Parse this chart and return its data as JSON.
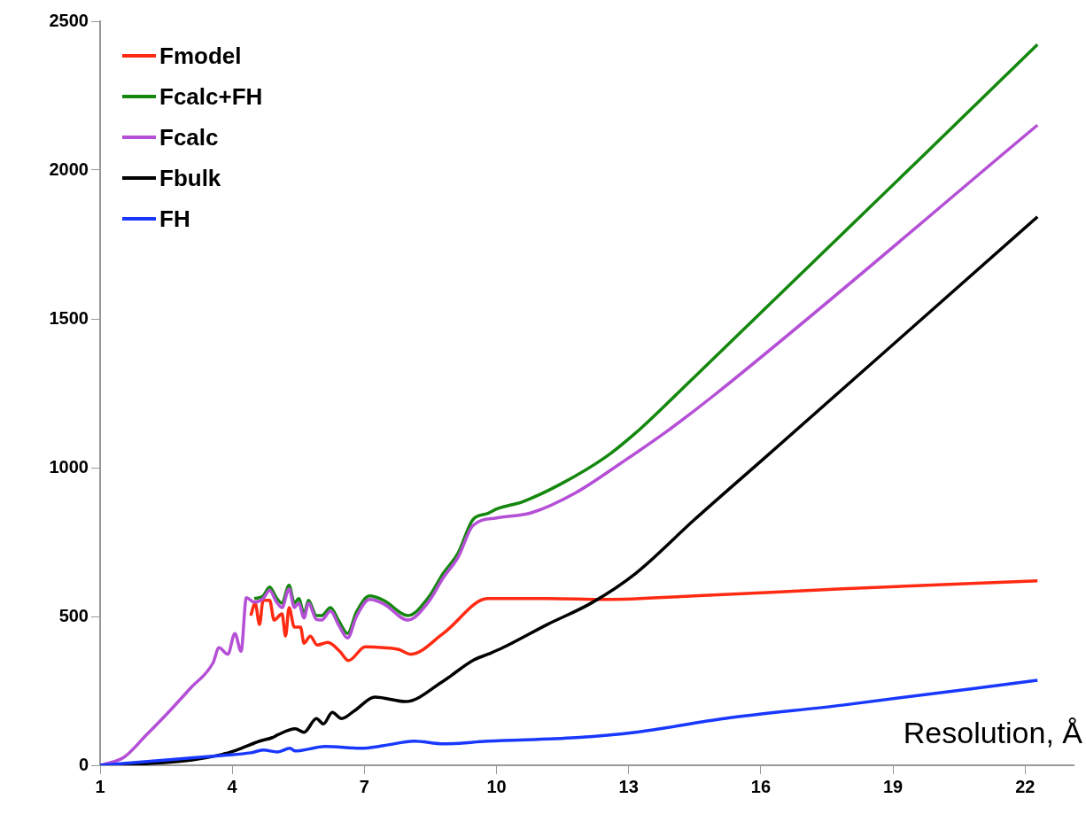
{
  "chart_data": {
    "type": "line",
    "xlabel": "Resolution, Å",
    "xlim": [
      1,
      23.1
    ],
    "xticks": [
      1,
      4,
      7,
      10,
      13,
      16,
      19,
      22
    ],
    "ylim": [
      0,
      2500
    ],
    "yticks": [
      0,
      500,
      1000,
      1500,
      2000,
      2500
    ],
    "grid": false,
    "legend": "top left",
    "marker": "none",
    "line_style": "solid",
    "series": [
      {
        "name": "Fmodel",
        "color": "#ff2a12",
        "x": [
          4.42,
          4.52,
          4.62,
          4.7,
          4.85,
          4.95,
          5.13,
          5.21,
          5.29,
          5.41,
          5.55,
          5.63,
          5.77,
          5.93,
          6.17,
          6.44,
          6.64,
          7.02,
          7.44,
          7.78,
          8.05,
          8.79,
          9.8,
          11.15,
          12.48,
          14.49,
          17.85,
          22.28
        ],
        "values": [
          503,
          545,
          473,
          554,
          554,
          488,
          509,
          434,
          530,
          464,
          464,
          410,
          434,
          404,
          413,
          383,
          352,
          398,
          395,
          389,
          373,
          443,
          560,
          560,
          557,
          569,
          593,
          620
        ]
      },
      {
        "name": "Fcalc+FH",
        "color": "#14880e",
        "x": [
          4.5,
          4.7,
          4.85,
          5.0,
          5.13,
          5.29,
          5.41,
          5.51,
          5.63,
          5.73,
          5.91,
          6.03,
          6.23,
          6.42,
          6.62,
          6.82,
          7.12,
          7.44,
          7.99,
          8.45,
          8.79,
          9.13,
          9.46,
          9.8,
          10.0,
          10.6,
          11.47,
          12.48,
          13.16,
          14.09,
          22.28
        ],
        "values": [
          560,
          569,
          599,
          563,
          545,
          605,
          545,
          560,
          509,
          554,
          503,
          503,
          530,
          485,
          443,
          515,
          569,
          554,
          503,
          563,
          645,
          714,
          825,
          846,
          861,
          886,
          946,
          1036,
          1117,
          1247,
          2422
        ]
      },
      {
        "name": "Fcalc",
        "color": "#b44fd6",
        "x": [
          1,
          1.54,
          2.05,
          2.55,
          3.05,
          3.56,
          3.7,
          3.9,
          4.06,
          4.2,
          4.32,
          4.5,
          4.7,
          4.85,
          5.0,
          5.13,
          5.29,
          5.41,
          5.51,
          5.63,
          5.73,
          5.91,
          6.03,
          6.23,
          6.42,
          6.62,
          6.82,
          7.12,
          7.44,
          7.99,
          8.45,
          8.79,
          9.13,
          9.46,
          10.0,
          10.8,
          11.8,
          12.82,
          13.82,
          14.97,
          22.28
        ],
        "values": [
          0,
          27,
          102,
          178,
          259,
          343,
          395,
          373,
          443,
          383,
          563,
          548,
          560,
          588,
          550,
          530,
          593,
          530,
          545,
          495,
          545,
          490,
          488,
          518,
          470,
          428,
          500,
          557,
          542,
          488,
          548,
          630,
          700,
          805,
          831,
          849,
          916,
          1015,
          1117,
          1247,
          2151
        ]
      },
      {
        "name": "Fbulk",
        "color": "#000000",
        "x": [
          1,
          2.09,
          3.09,
          3.76,
          4.1,
          4.62,
          4.91,
          5.03,
          5.43,
          5.63,
          5.91,
          6.07,
          6.27,
          6.48,
          6.78,
          7.24,
          7.93,
          8.79,
          9.46,
          9.8,
          10.14,
          11.15,
          12.15,
          13.16,
          14.49,
          16.18,
          22.28
        ],
        "values": [
          0,
          6,
          18,
          36,
          51,
          81,
          93,
          102,
          123,
          111,
          157,
          139,
          178,
          157,
          184,
          229,
          214,
          283,
          352,
          373,
          395,
          473,
          545,
          645,
          825,
          1045,
          1843
        ]
      },
      {
        "name": "FH",
        "color": "#1838ff",
        "x": [
          1,
          2.75,
          3.76,
          4.42,
          4.7,
          5.03,
          5.31,
          5.43,
          6.11,
          6.92,
          7.44,
          8.13,
          8.79,
          9.8,
          11.81,
          13.16,
          15.17,
          17.85,
          22.28
        ],
        "values": [
          0,
          21,
          33,
          42,
          51,
          45,
          57,
          48,
          63,
          57,
          66,
          81,
          72,
          81,
          93,
          111,
          157,
          202,
          286
        ]
      }
    ]
  }
}
